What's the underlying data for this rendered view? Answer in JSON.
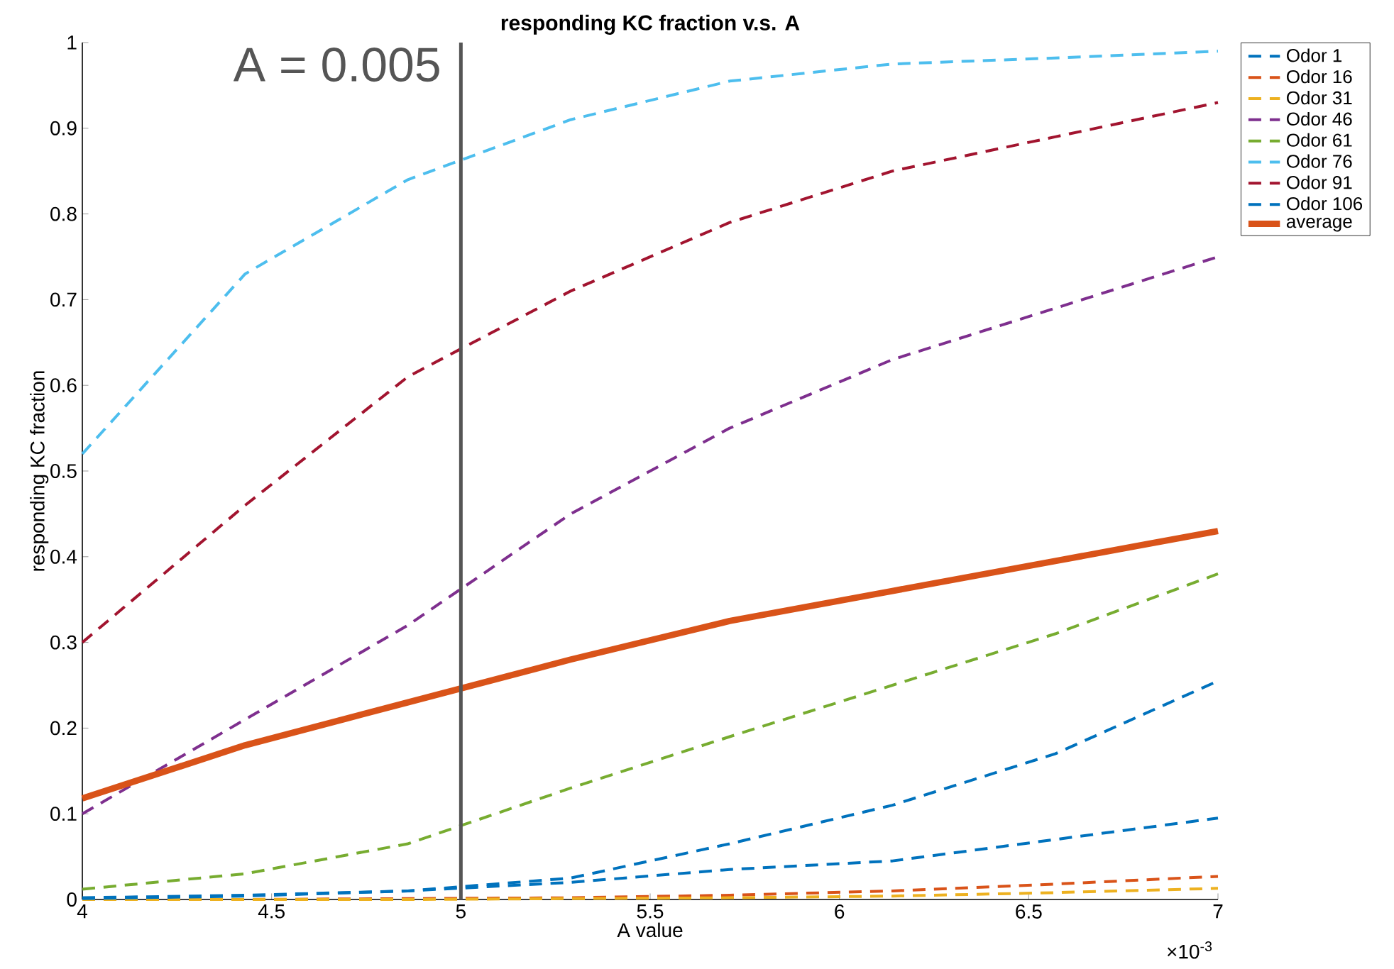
{
  "chart_data": {
    "type": "line",
    "title": "responding KC fraction v.s. A",
    "xlabel": "A value",
    "ylabel": "responding KC fraction",
    "x": [
      4,
      4.43,
      4.86,
      5.29,
      5.71,
      6.14,
      6.57,
      7
    ],
    "series": [
      {
        "name": "Odor 1",
        "color": "#0072bd",
        "line_style": "dashed",
        "values": [
          0.002,
          0.005,
          0.01,
          0.025,
          0.065,
          0.11,
          0.17,
          0.255
        ]
      },
      {
        "name": "Odor 16",
        "color": "#d95319",
        "line_style": "dashed",
        "values": [
          0,
          0,
          0.001,
          0.002,
          0.005,
          0.01,
          0.018,
          0.027
        ]
      },
      {
        "name": "Odor 31",
        "color": "#edb120",
        "line_style": "dashed",
        "values": [
          0,
          0,
          0,
          0.001,
          0.002,
          0.004,
          0.008,
          0.013
        ]
      },
      {
        "name": "Odor 46",
        "color": "#7e2f8e",
        "line_style": "dashed",
        "values": [
          0.1,
          0.21,
          0.32,
          0.45,
          0.55,
          0.63,
          0.69,
          0.75
        ]
      },
      {
        "name": "Odor 61",
        "color": "#77ac30",
        "line_style": "dashed",
        "values": [
          0.012,
          0.03,
          0.065,
          0.13,
          0.19,
          0.25,
          0.31,
          0.38
        ]
      },
      {
        "name": "Odor 76",
        "color": "#4dbeee",
        "line_style": "dashed",
        "values": [
          0.52,
          0.73,
          0.84,
          0.91,
          0.955,
          0.975,
          0.982,
          0.99
        ]
      },
      {
        "name": "Odor 91",
        "color": "#a2142f",
        "line_style": "dashed",
        "values": [
          0.3,
          0.46,
          0.61,
          0.71,
          0.79,
          0.85,
          0.89,
          0.93
        ]
      },
      {
        "name": "Odor 106",
        "color": "#0072bd",
        "line_style": "dashed",
        "values": [
          0.001,
          0.004,
          0.01,
          0.02,
          0.035,
          0.045,
          0.07,
          0.095
        ]
      },
      {
        "name": "average",
        "color": "#d95319",
        "line_style": "solid",
        "values": [
          0.118,
          0.18,
          0.23,
          0.28,
          0.325,
          0.36,
          0.395,
          0.43
        ]
      }
    ],
    "xlim": [
      4,
      7
    ],
    "xticks": [
      4,
      4.5,
      5,
      5.5,
      6,
      6.5,
      7
    ],
    "ylim": [
      0,
      1
    ],
    "yticks": [
      0,
      0.1,
      0.2,
      0.3,
      0.4,
      0.5,
      0.6,
      0.7,
      0.8,
      0.9,
      1
    ],
    "ref_lines": [
      {
        "axis": "x",
        "value": 5,
        "color": "#555555"
      }
    ],
    "annotations": [
      "A = 0.005",
      "×10$^{-3}$"
    ],
    "legend": "right",
    "grid": false,
    "marker": "none"
  }
}
